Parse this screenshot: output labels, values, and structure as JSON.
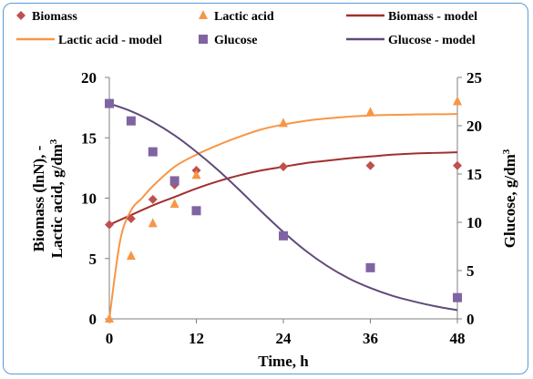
{
  "chart_data": {
    "type": "line",
    "xlabel": "Time, h",
    "ylabel": "Biomass (lnN), -",
    "ylabel_line2": "Lactic acid, g/dm",
    "ylabel2": "Glucose, g/dm",
    "unit_superscript": "3",
    "xlim": [
      0,
      48
    ],
    "ylim": [
      0,
      20
    ],
    "y2lim": [
      0,
      25
    ],
    "x_ticks": [
      "0",
      "12",
      "24",
      "36",
      "48"
    ],
    "y_ticks": [
      "0",
      "5",
      "10",
      "15",
      "20"
    ],
    "y2_ticks": [
      "0",
      "5",
      "10",
      "15",
      "20",
      "25"
    ],
    "grid": false,
    "legend_position": "top",
    "series": [
      {
        "name": "Biomass",
        "kind": "scatter",
        "marker": "diamond",
        "axis": "left",
        "color": "#c0504d",
        "x": [
          0,
          3,
          6,
          9,
          12,
          24,
          36,
          48
        ],
        "y": [
          7.8,
          8.3,
          9.9,
          11.1,
          12.3,
          12.6,
          12.7,
          12.7
        ]
      },
      {
        "name": "Lactic acid",
        "kind": "scatter",
        "marker": "triangle",
        "axis": "left",
        "color": "#f79646",
        "x": [
          0,
          3,
          6,
          9,
          12,
          24,
          36,
          48
        ],
        "y": [
          0,
          5.2,
          7.9,
          9.5,
          11.9,
          16.2,
          17.1,
          18.0
        ]
      },
      {
        "name": "Biomass - model",
        "kind": "line",
        "axis": "left",
        "color": "#a0302d",
        "x": [
          0,
          3,
          6,
          9,
          12,
          15,
          18,
          21,
          24,
          27,
          30,
          33,
          36,
          39,
          42,
          45,
          48
        ],
        "y": [
          7.8,
          8.6,
          9.4,
          10.1,
          10.8,
          11.4,
          11.9,
          12.3,
          12.6,
          12.9,
          13.1,
          13.3,
          13.45,
          13.6,
          13.7,
          13.75,
          13.8
        ]
      },
      {
        "name": "Lactic acid - model",
        "kind": "line",
        "axis": "left",
        "color": "#f79646",
        "x": [
          0,
          1.5,
          3,
          4.5,
          6,
          9,
          12,
          15,
          18,
          21,
          24,
          27,
          30,
          33,
          36,
          39,
          42,
          45,
          48
        ],
        "y": [
          0,
          6.5,
          9.0,
          10.0,
          11.0,
          12.6,
          13.6,
          14.4,
          15.1,
          15.7,
          16.1,
          16.4,
          16.6,
          16.75,
          16.85,
          16.9,
          16.93,
          16.95,
          16.97
        ]
      },
      {
        "name": "Glucose",
        "kind": "scatter",
        "marker": "square",
        "axis": "right",
        "color": "#8064a2",
        "x": [
          0,
          3,
          6,
          9,
          12,
          24,
          36,
          48
        ],
        "y": [
          22.3,
          20.5,
          17.3,
          14.3,
          11.2,
          8.6,
          5.3,
          2.2
        ]
      },
      {
        "name": "Glucose - model",
        "kind": "line",
        "axis": "right",
        "color": "#604a7b",
        "x": [
          0,
          3,
          6,
          9,
          12,
          15,
          18,
          21,
          24,
          27,
          30,
          33,
          36,
          39,
          42,
          45,
          48
        ],
        "y": [
          22.3,
          21.5,
          20.4,
          19.0,
          17.3,
          15.4,
          13.3,
          11.1,
          9.0,
          7.1,
          5.5,
          4.2,
          3.2,
          2.4,
          1.8,
          1.3,
          0.9
        ]
      }
    ]
  }
}
